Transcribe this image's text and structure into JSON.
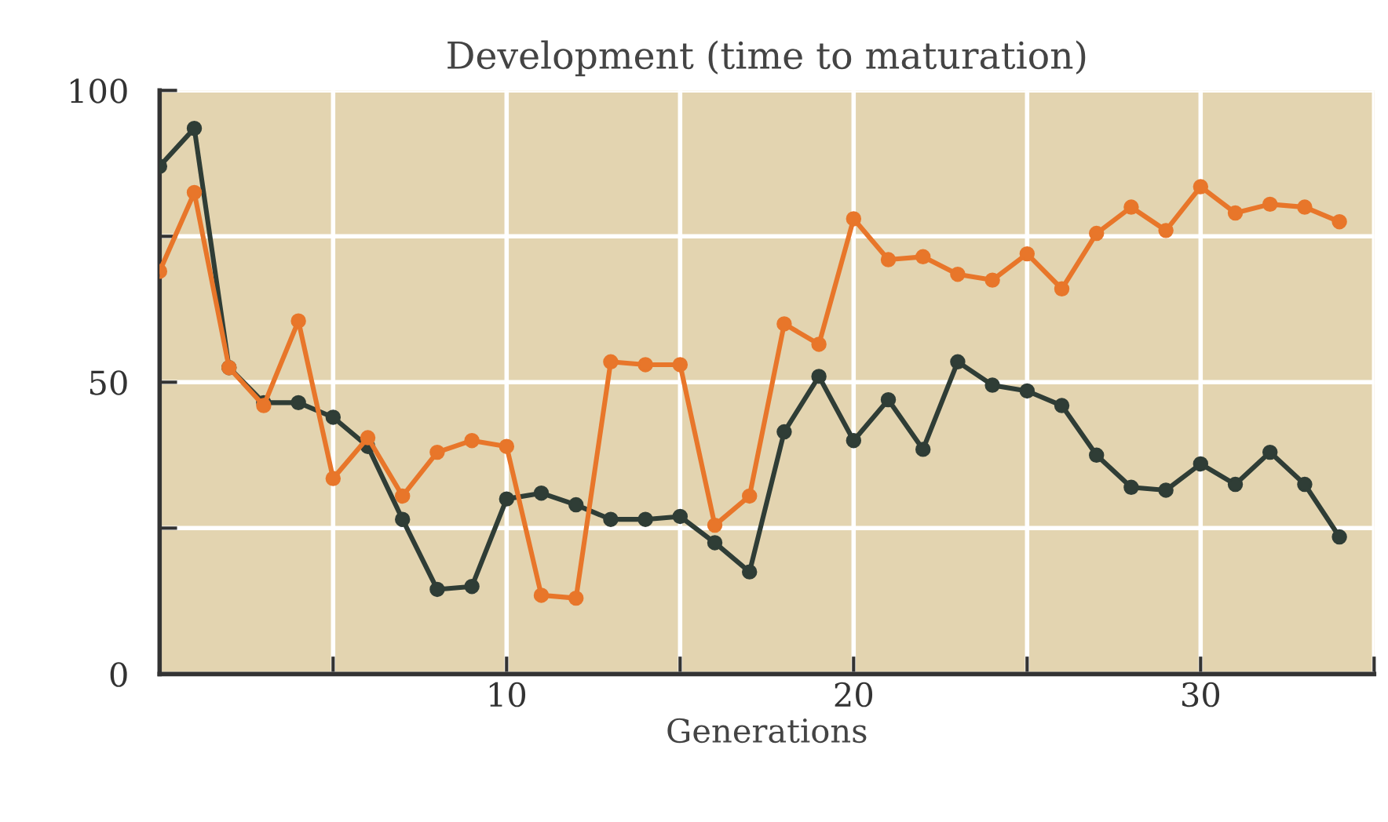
{
  "chart_data": {
    "type": "line",
    "title": "Development (time to maturation)",
    "xlabel": "Generations",
    "x": [
      0,
      1,
      2,
      3,
      4,
      5,
      6,
      7,
      8,
      9,
      10,
      11,
      12,
      13,
      14,
      15,
      16,
      17,
      18,
      19,
      20,
      21,
      22,
      23,
      24,
      25,
      26,
      27,
      28,
      29,
      30,
      31,
      32,
      33,
      34
    ],
    "series": [
      {
        "color": "#2f3d36",
        "values": [
          87,
          93.5,
          52.5,
          46.5,
          46.5,
          44,
          39,
          26.5,
          14.5,
          15,
          30,
          31,
          29,
          26.5,
          26.5,
          27,
          22.5,
          17.5,
          41.5,
          51,
          40,
          47,
          38.5,
          53.5,
          49.5,
          48.5,
          46,
          37.5,
          32,
          31.5,
          36,
          32.5,
          38,
          32.5,
          23.5
        ]
      },
      {
        "color": "#e8762a",
        "values": [
          69,
          82.5,
          52.5,
          46,
          60.5,
          33.5,
          40.5,
          30.5,
          38,
          40,
          39,
          13.5,
          13,
          53.5,
          53,
          53,
          25.5,
          30.5,
          60,
          56.5,
          78,
          71,
          71.5,
          68.5,
          67.5,
          72,
          66,
          75.5,
          80,
          76,
          83.5,
          79,
          80.5,
          80,
          77.5
        ]
      }
    ],
    "xlim": [
      0,
      35
    ],
    "ylim": [
      0,
      100
    ],
    "xticks": [
      {
        "value": 0,
        "label": null
      },
      {
        "value": 5,
        "label": null
      },
      10,
      {
        "value": 15,
        "label": null
      },
      20,
      {
        "value": 25,
        "label": null
      },
      30,
      {
        "value": 35,
        "label": null
      }
    ],
    "yticks": [
      0,
      {
        "value": 25,
        "label": null
      },
      50,
      {
        "value": 75,
        "label": null
      },
      100
    ],
    "grid": true,
    "marker": "circle",
    "line_style": "solid"
  }
}
